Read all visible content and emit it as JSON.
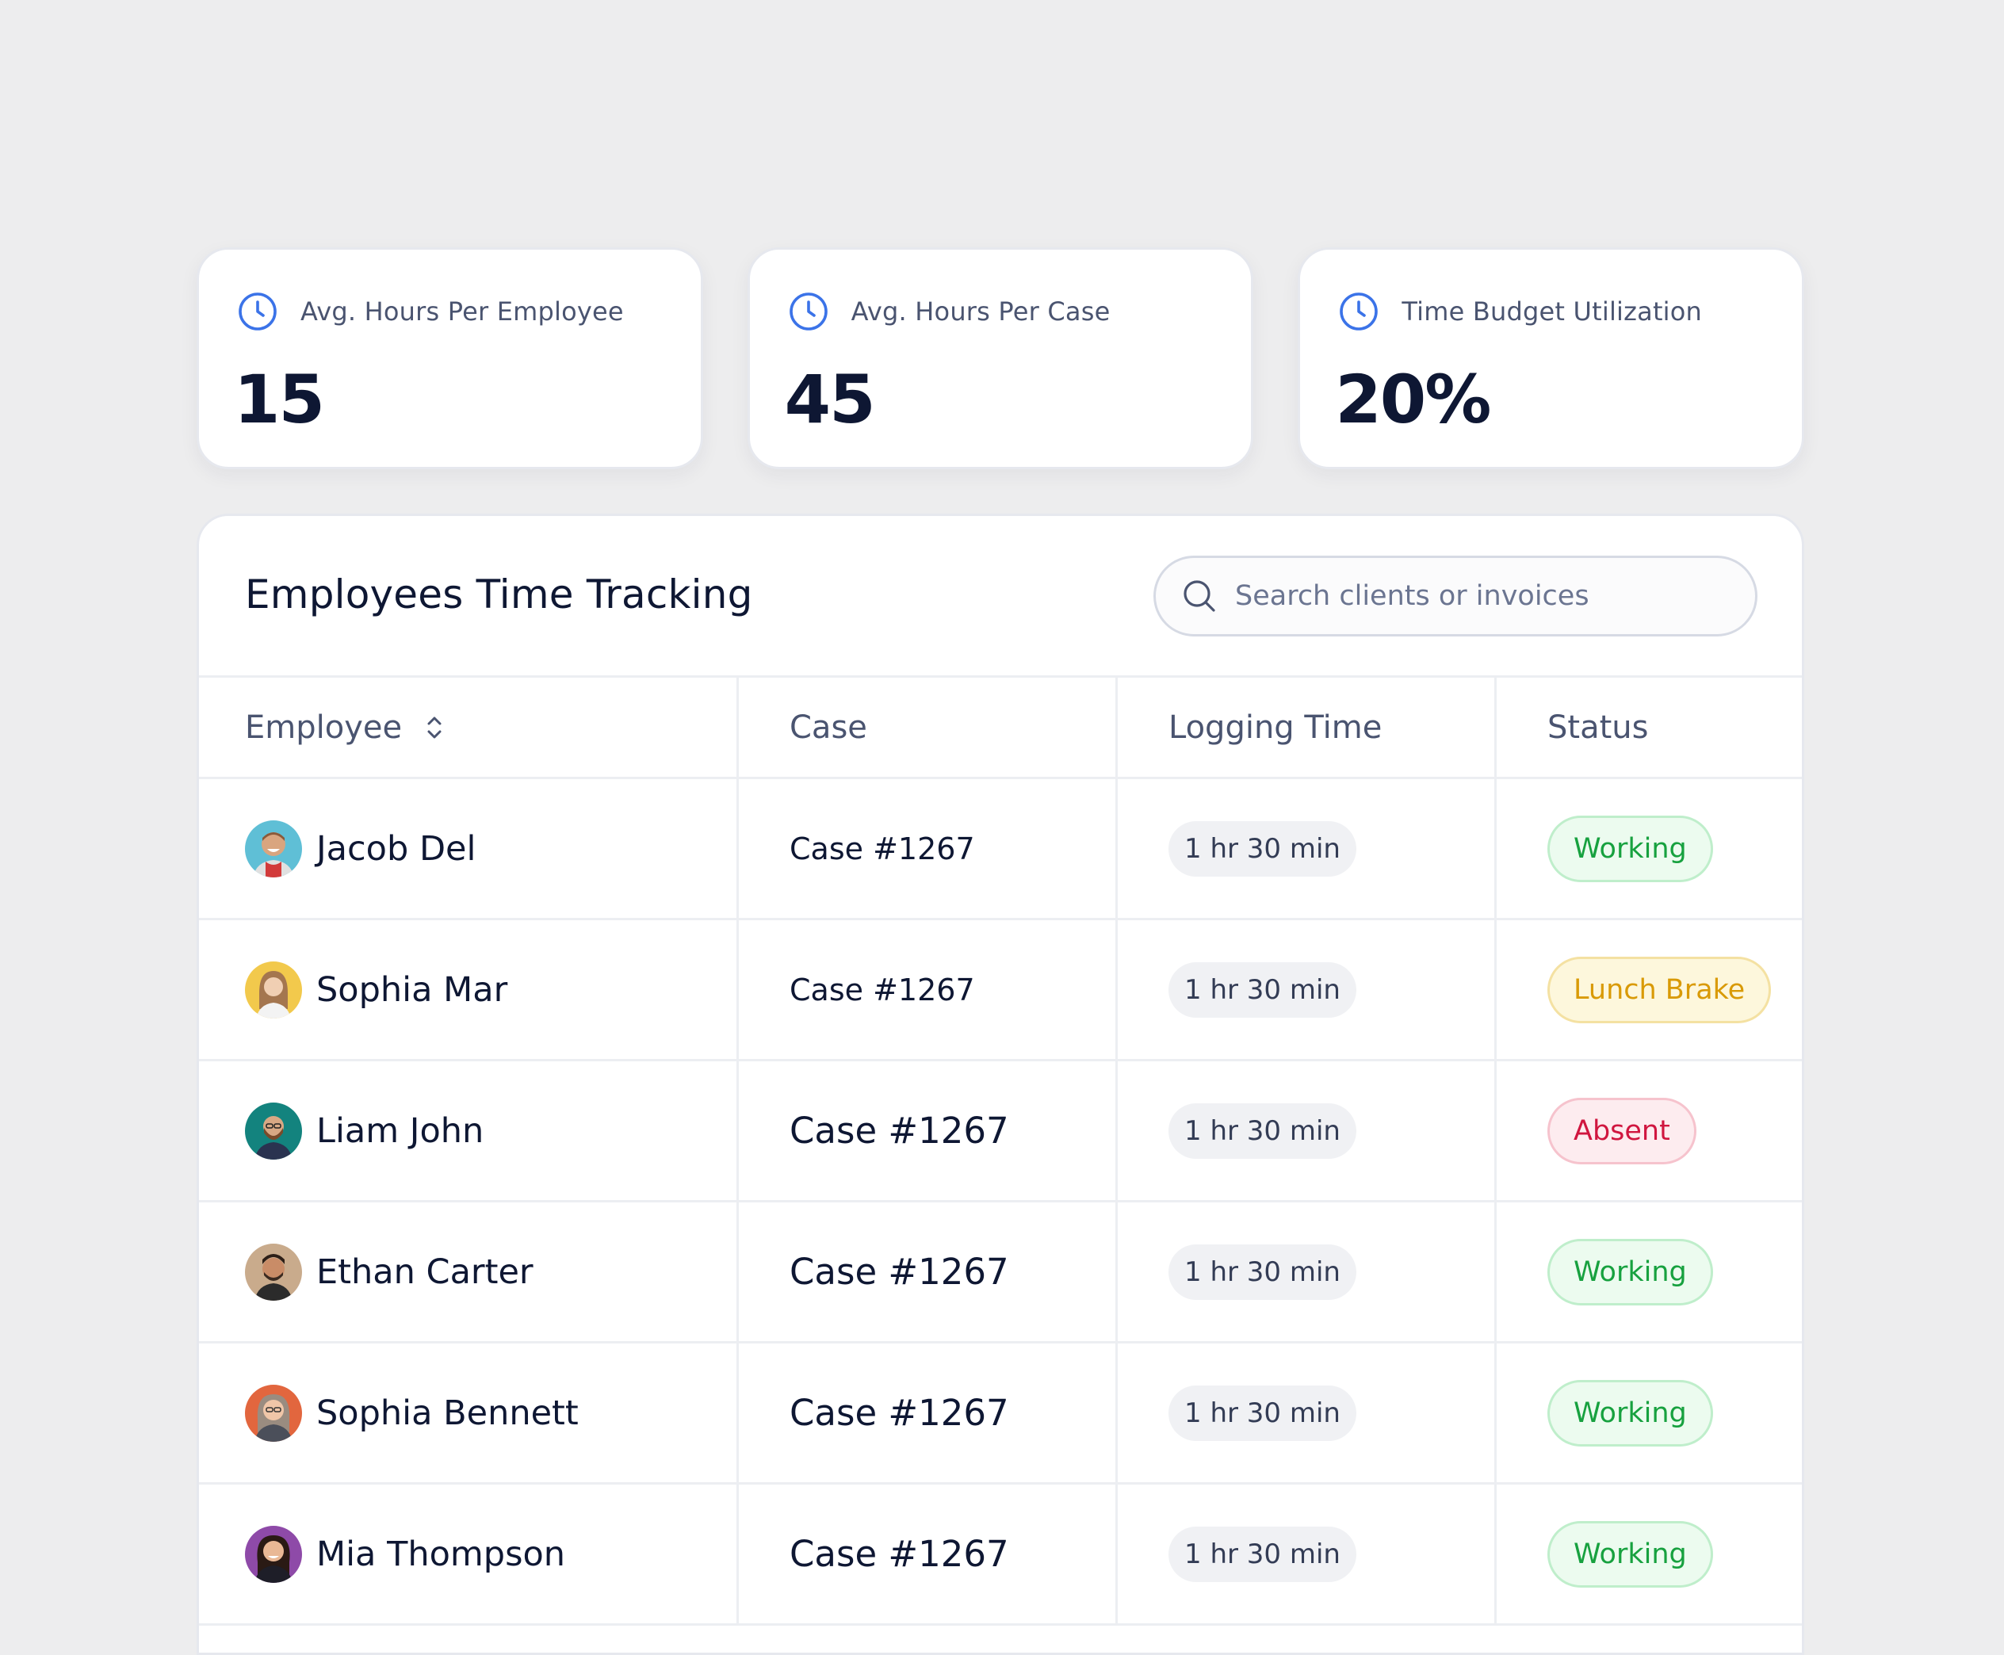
{
  "stats": [
    {
      "label": "Avg. Hours Per Employee",
      "value": "15",
      "icon": "clock-icon"
    },
    {
      "label": "Avg. Hours Per Case",
      "value": "45",
      "icon": "clock-icon"
    },
    {
      "label": "Time Budget Utilization",
      "value": "20%",
      "icon": "clock-icon"
    }
  ],
  "panel": {
    "title": "Employees Time Tracking",
    "search_placeholder": "Search clients or invoices"
  },
  "table": {
    "headers": {
      "employee": "Employee",
      "case": "Case",
      "logging_time": "Logging Time",
      "status": "Status"
    },
    "rows": [
      {
        "name": "Jacob Del",
        "case": "Case #1267",
        "time": "1 hr 30 min",
        "status": "Working"
      },
      {
        "name": "Sophia Mar",
        "case": "Case #1267",
        "time": "1 hr 30 min",
        "status": "Lunch Brake"
      },
      {
        "name": "Liam John",
        "case": "Case #1267",
        "time": "1 hr 30 min",
        "status": "Absent"
      },
      {
        "name": "Ethan Carter",
        "case": "Case #1267",
        "time": "1 hr 30 min",
        "status": "Working"
      },
      {
        "name": "Sophia Bennett",
        "case": "Case #1267",
        "time": "1 hr 30 min",
        "status": "Working"
      },
      {
        "name": "Mia Thompson",
        "case": "Case #1267",
        "time": "1 hr 30 min",
        "status": "Working"
      }
    ]
  },
  "colors": {
    "accent": "#3b73e8",
    "working_text": "#17a13f",
    "working_bg": "#ecfbef",
    "working_border": "#bfeecb",
    "lunch_text": "#d99a06",
    "lunch_bg": "#fdf7dc",
    "lunch_border": "#f4e1a2",
    "absent_text": "#d0163f",
    "absent_bg": "#fdecef",
    "absent_border": "#f6c3cd"
  }
}
